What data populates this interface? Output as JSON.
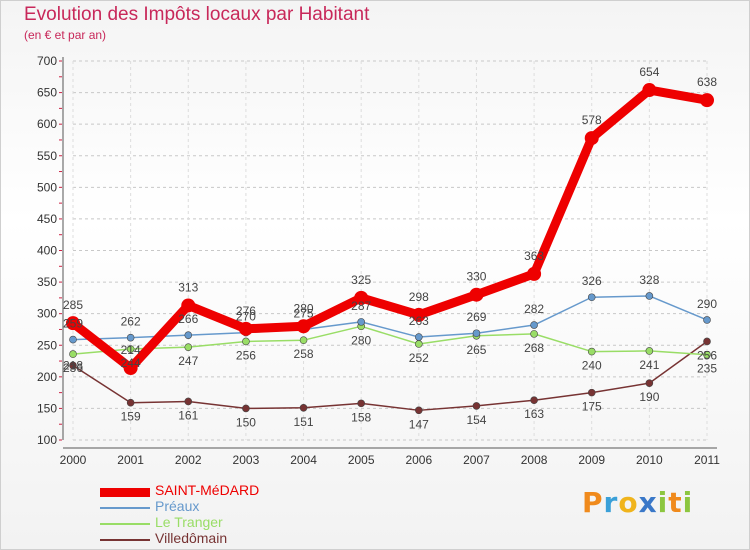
{
  "header": {
    "title": "Evolution des Impôts locaux par Habitant",
    "subtitle": "(en € et par an)"
  },
  "brand": {
    "letters": [
      {
        "ch": "P",
        "color": "#f08a1c"
      },
      {
        "ch": "r",
        "color": "#3aa0d8"
      },
      {
        "ch": "o",
        "color": "#f0b41c"
      },
      {
        "ch": "x",
        "color": "#3a78c8"
      },
      {
        "ch": "i",
        "color": "#8cc63f"
      },
      {
        "ch": "t",
        "color": "#f08a1c"
      },
      {
        "ch": "i",
        "color": "#8cc63f"
      }
    ]
  },
  "chart_data": {
    "type": "line",
    "title": "Evolution des Impôts locaux par Habitant",
    "subtitle": "(en € et par an)",
    "xlabel": "",
    "ylabel": "",
    "categories": [
      "2000",
      "2001",
      "2002",
      "2003",
      "2004",
      "2005",
      "2006",
      "2007",
      "2008",
      "2009",
      "2010",
      "2011"
    ],
    "ylim": [
      100,
      700
    ],
    "yticks": [
      100,
      150,
      200,
      250,
      300,
      350,
      400,
      450,
      500,
      550,
      600,
      650,
      700
    ],
    "grid": "horizontal dashed",
    "legend": "bottom-left",
    "series": [
      {
        "name": "SAINT-MéDARD",
        "color": "#ee0000",
        "values": [
          285,
          214,
          313,
          276,
          280,
          325,
          298,
          330,
          363,
          578,
          654,
          638
        ]
      },
      {
        "name": "Préaux",
        "color": "#6699cc",
        "values": [
          259,
          262,
          266,
          270,
          275,
          287,
          263,
          269,
          282,
          326,
          328,
          290
        ]
      },
      {
        "name": "Le Tranger",
        "color": "#99dd66",
        "values": [
          236,
          244,
          247,
          256,
          258,
          280,
          252,
          265,
          268,
          240,
          241,
          235
        ]
      },
      {
        "name": "Villedômain",
        "color": "#773333",
        "values": [
          218,
          159,
          161,
          150,
          151,
          158,
          147,
          154,
          163,
          175,
          190,
          256
        ]
      }
    ],
    "data_labels": [
      [
        "285",
        "214",
        "313",
        "276",
        "280",
        "325",
        "298",
        "330",
        "363",
        "578",
        "654",
        "638"
      ],
      [
        "259",
        "262",
        "266",
        "270",
        "275",
        "287",
        "263",
        "269",
        "282",
        "326",
        "328",
        "290"
      ],
      [
        "236",
        "244",
        "247",
        "256",
        "258",
        "280",
        "252",
        "265",
        "268",
        "240",
        "241",
        "235"
      ],
      [
        "218",
        "159",
        "161",
        "150",
        "151",
        "158",
        "147",
        "154",
        "163",
        "175",
        "190",
        "256"
      ]
    ]
  }
}
